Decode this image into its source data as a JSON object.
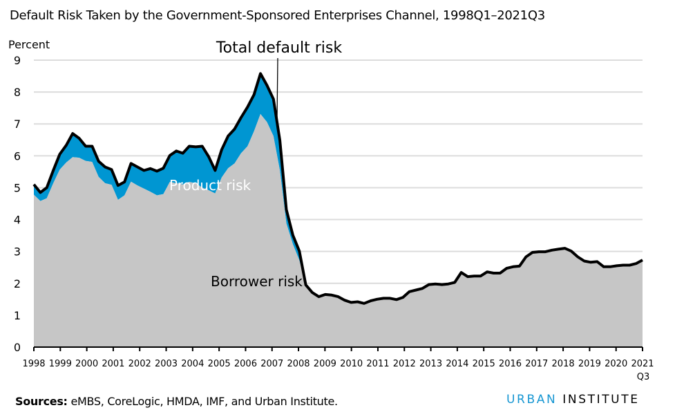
{
  "title": "Default Risk Taken by the Government-Sponsored Enterprises Channel, 1998Q1–2021Q3",
  "footer": {
    "sources_label": "Sources:",
    "sources_text": " eMBS, CoreLogic, HMDA, IMF, and Urban Institute.",
    "logo_part1": "URBAN",
    "logo_part2": "INSTITUTE"
  },
  "chart_data": {
    "type": "area",
    "title": "Default Risk Taken by the Government-Sponsored Enterprises Channel, 1998Q1–2021Q3",
    "ylabel": "Percent",
    "xlabel": "",
    "ylim": [
      0,
      9
    ],
    "yticks": [
      "0",
      "1",
      "2",
      "3",
      "4",
      "5",
      "6",
      "7",
      "8",
      "9"
    ],
    "xticks": [
      "1998",
      "1999",
      "2000",
      "2001",
      "2002",
      "2003",
      "2004",
      "2005",
      "2006",
      "2007",
      "2008",
      "2009",
      "2010",
      "2011",
      "2012",
      "2013",
      "2014",
      "2015",
      "2016",
      "2017",
      "2018",
      "2019",
      "2020",
      "2021"
    ],
    "xtick_sublabel": "Q3",
    "grid": "horizontal",
    "colors": {
      "borrower": "#c6c6c6",
      "product": "#0096d2",
      "total": "#000000"
    },
    "annotations": {
      "total": "Total default risk",
      "product": "Product risk",
      "borrower": "Borrower risk"
    },
    "x": [
      "1998Q1",
      "1998Q2",
      "1998Q3",
      "1998Q4",
      "1999Q1",
      "1999Q2",
      "1999Q3",
      "1999Q4",
      "2000Q1",
      "2000Q2",
      "2000Q3",
      "2000Q4",
      "2001Q1",
      "2001Q2",
      "2001Q3",
      "2001Q4",
      "2002Q1",
      "2002Q2",
      "2002Q3",
      "2002Q4",
      "2003Q1",
      "2003Q2",
      "2003Q3",
      "2003Q4",
      "2004Q1",
      "2004Q2",
      "2004Q3",
      "2004Q4",
      "2005Q1",
      "2005Q2",
      "2005Q3",
      "2005Q4",
      "2006Q1",
      "2006Q2",
      "2006Q3",
      "2006Q4",
      "2007Q1",
      "2007Q2",
      "2007Q3",
      "2007Q4",
      "2008Q1",
      "2008Q2",
      "2008Q3",
      "2008Q4",
      "2009Q1",
      "2009Q2",
      "2009Q3",
      "2009Q4",
      "2010Q1",
      "2010Q2",
      "2010Q3",
      "2010Q4",
      "2011Q1",
      "2011Q2",
      "2011Q3",
      "2011Q4",
      "2012Q1",
      "2012Q2",
      "2012Q3",
      "2012Q4",
      "2013Q1",
      "2013Q2",
      "2013Q3",
      "2013Q4",
      "2014Q1",
      "2014Q2",
      "2014Q3",
      "2014Q4",
      "2015Q1",
      "2015Q2",
      "2015Q3",
      "2015Q4",
      "2016Q1",
      "2016Q2",
      "2016Q3",
      "2016Q4",
      "2017Q1",
      "2017Q2",
      "2017Q3",
      "2017Q4",
      "2018Q1",
      "2018Q2",
      "2018Q3",
      "2018Q4",
      "2019Q1",
      "2019Q2",
      "2019Q3",
      "2019Q4",
      "2020Q1",
      "2020Q2",
      "2020Q3",
      "2020Q4",
      "2021Q1",
      "2021Q2",
      "2021Q3"
    ],
    "series": [
      {
        "name": "Borrower risk",
        "values": [
          4.78,
          4.58,
          4.67,
          5.14,
          5.57,
          5.79,
          5.96,
          5.94,
          5.84,
          5.81,
          5.34,
          5.14,
          5.09,
          4.62,
          4.76,
          5.19,
          5.07,
          4.97,
          4.87,
          4.76,
          4.8,
          5.18,
          5.14,
          5.1,
          5.18,
          5.14,
          5.0,
          4.92,
          4.82,
          5.32,
          5.61,
          5.76,
          6.08,
          6.3,
          6.77,
          7.31,
          7.06,
          6.62,
          5.54,
          3.88,
          3.23,
          2.72,
          1.95,
          1.71,
          1.58,
          1.65,
          1.63,
          1.58,
          1.47,
          1.4,
          1.42,
          1.37,
          1.45,
          1.5,
          1.53,
          1.53,
          1.49,
          1.56,
          1.74,
          1.79,
          1.84,
          1.96,
          1.98,
          1.96,
          1.98,
          2.03,
          2.34,
          2.21,
          2.23,
          2.23,
          2.36,
          2.32,
          2.32,
          2.47,
          2.52,
          2.54,
          2.83,
          2.97,
          2.99,
          2.99,
          3.04,
          3.07,
          3.1,
          3.01,
          2.83,
          2.7,
          2.66,
          2.68,
          2.52,
          2.52,
          2.55,
          2.57,
          2.57,
          2.62,
          2.73
        ]
      },
      {
        "name": "Total default risk",
        "values": [
          5.1,
          4.85,
          5.0,
          5.54,
          6.05,
          6.33,
          6.7,
          6.55,
          6.3,
          6.3,
          5.83,
          5.65,
          5.57,
          5.07,
          5.18,
          5.76,
          5.65,
          5.54,
          5.6,
          5.52,
          5.61,
          6.01,
          6.15,
          6.08,
          6.3,
          6.28,
          6.3,
          5.97,
          5.54,
          6.19,
          6.62,
          6.84,
          7.2,
          7.53,
          7.92,
          8.58,
          8.21,
          7.78,
          6.48,
          4.31,
          3.51,
          3.01,
          1.95,
          1.71,
          1.58,
          1.65,
          1.63,
          1.58,
          1.47,
          1.4,
          1.42,
          1.37,
          1.45,
          1.5,
          1.53,
          1.53,
          1.49,
          1.56,
          1.74,
          1.79,
          1.84,
          1.96,
          1.98,
          1.96,
          1.98,
          2.03,
          2.34,
          2.21,
          2.23,
          2.23,
          2.36,
          2.32,
          2.32,
          2.47,
          2.52,
          2.54,
          2.83,
          2.97,
          2.99,
          2.99,
          3.04,
          3.07,
          3.1,
          3.01,
          2.83,
          2.7,
          2.66,
          2.68,
          2.52,
          2.52,
          2.55,
          2.57,
          2.57,
          2.62,
          2.73
        ]
      }
    ]
  }
}
